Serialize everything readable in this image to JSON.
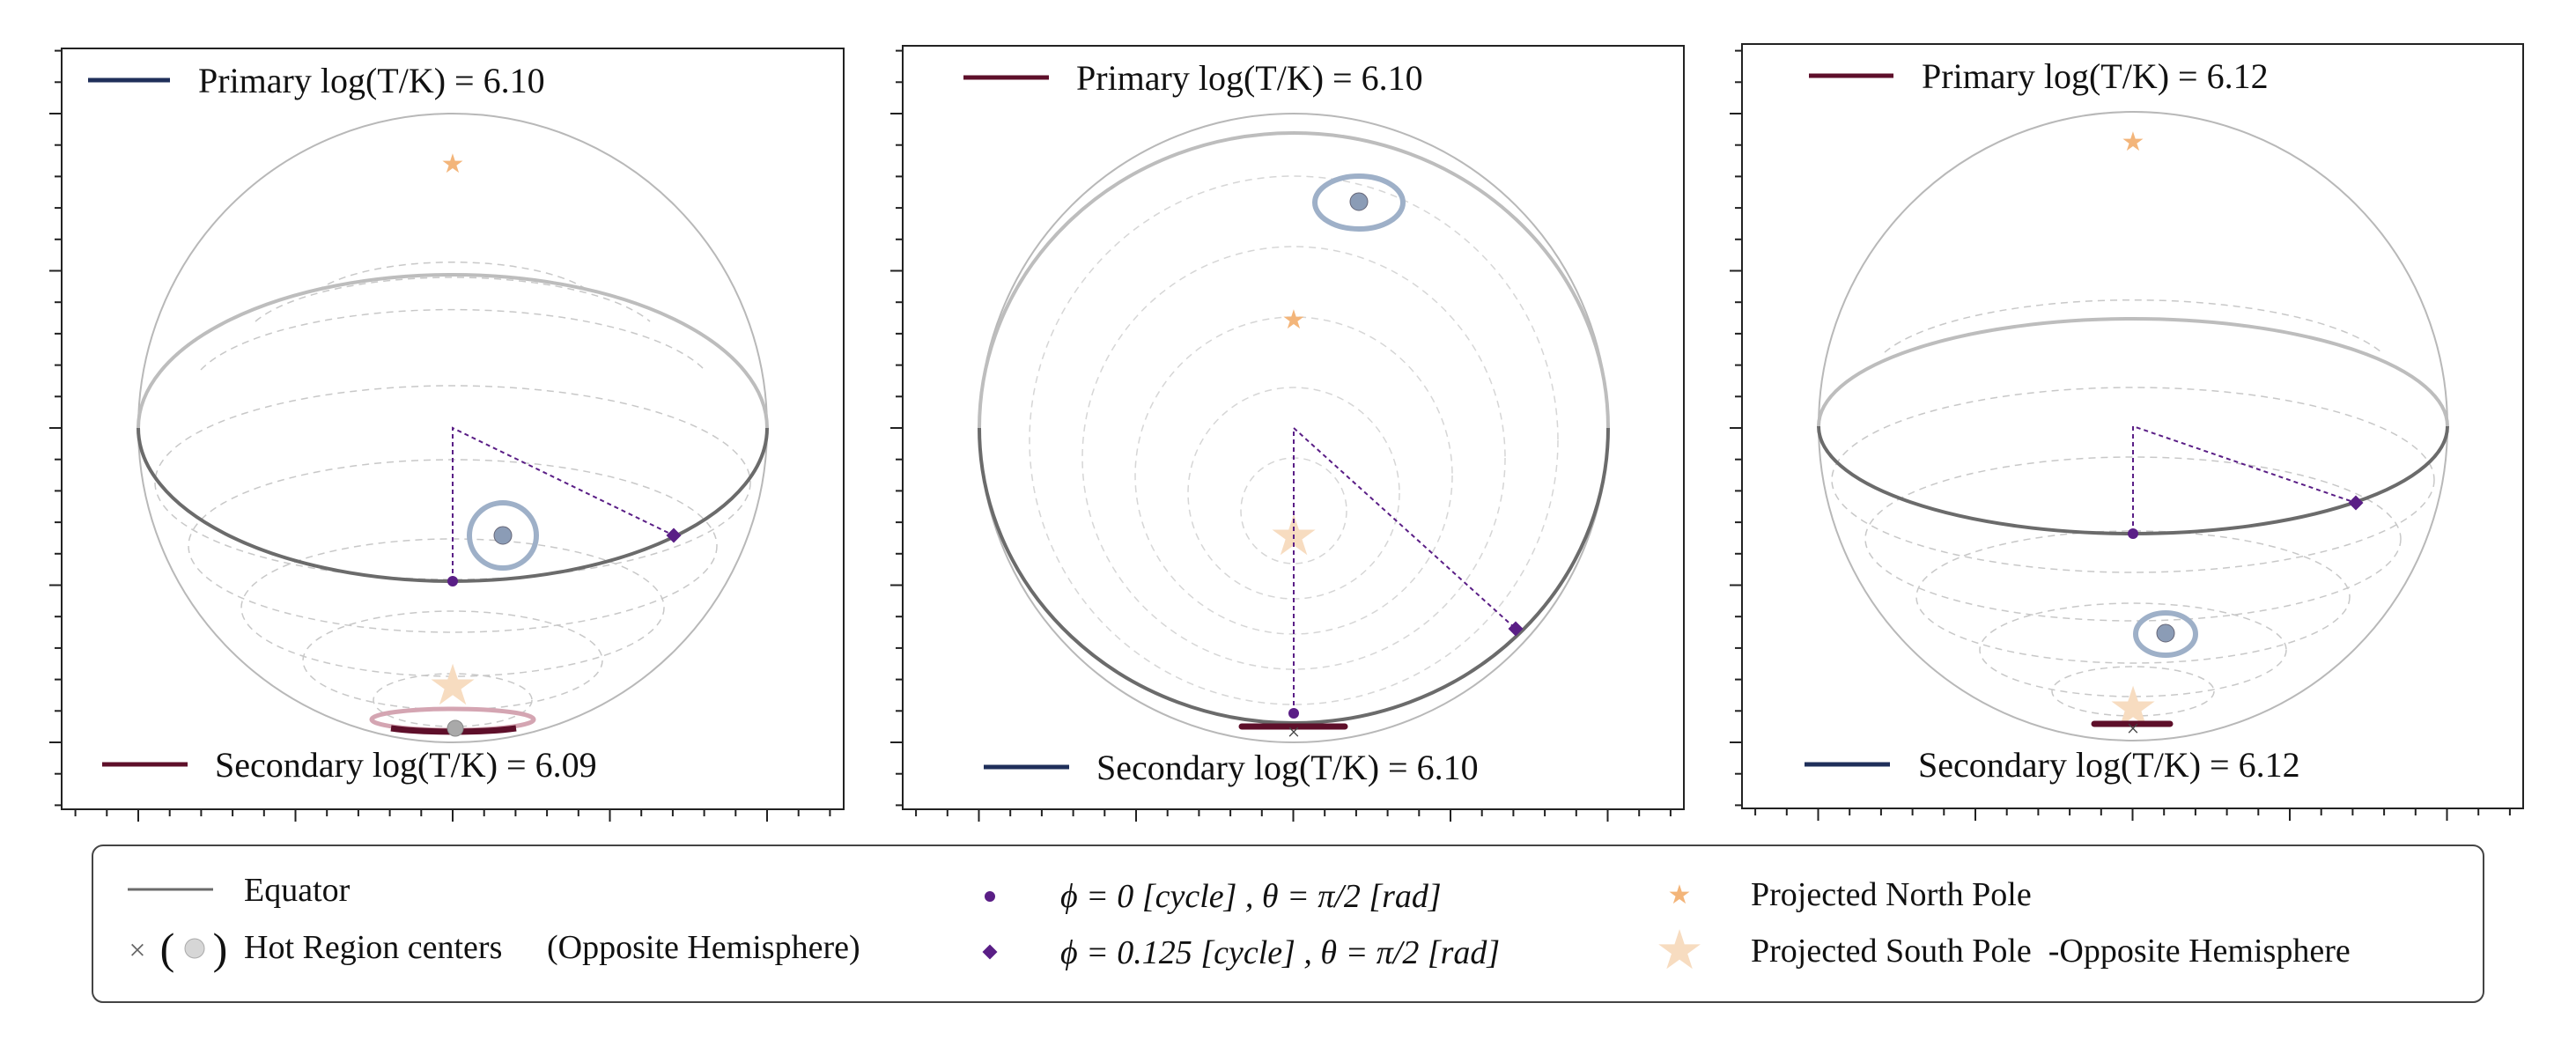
{
  "panels": [
    {
      "primary_label": "Primary log(T/K) = 6.10",
      "primary_color": "#1f2f5a",
      "secondary_label": "Secondary log(T/K) = 6.09",
      "secondary_color": "#5e0f2a"
    },
    {
      "primary_label": "Primary log(T/K) = 6.10",
      "primary_color": "#5e0f2a",
      "secondary_label": "Secondary log(T/K) = 6.10",
      "secondary_color": "#1f2f5a"
    },
    {
      "primary_label": "Primary log(T/K) = 6.12",
      "primary_color": "#5e0f2a",
      "secondary_label": "Secondary log(T/K) = 6.12",
      "secondary_color": "#1f2f5a"
    }
  ],
  "legend": {
    "equator": "Equator",
    "hot_region": "Hot Region centers",
    "opposite_hemisphere": "(Opposite Hemisphere)",
    "phase0_phi": "ϕ = 0",
    "phase0_cycle": "[cycle]",
    "phase0_theta": ", θ = π/2",
    "phase0_rad": "[rad]",
    "phase125_phi": "ϕ = 0.125",
    "phase125_cycle": "[cycle]",
    "phase125_theta": ", θ = π/2",
    "phase125_rad": "[rad]",
    "north_pole": "Projected North Pole",
    "south_pole": "Projected South Pole  -Opposite Hemisphere"
  },
  "colors": {
    "equator": "#6b6b6b",
    "sphere_outline": "#b8b8b8",
    "latitude": "#d0d0d0",
    "marker": "#5a1e86",
    "north_pole": "#f3b57a",
    "south_pole": "#f7dcc0",
    "spot_ring": "#9eb0c8",
    "spot_center": "#8b9cb6"
  }
}
